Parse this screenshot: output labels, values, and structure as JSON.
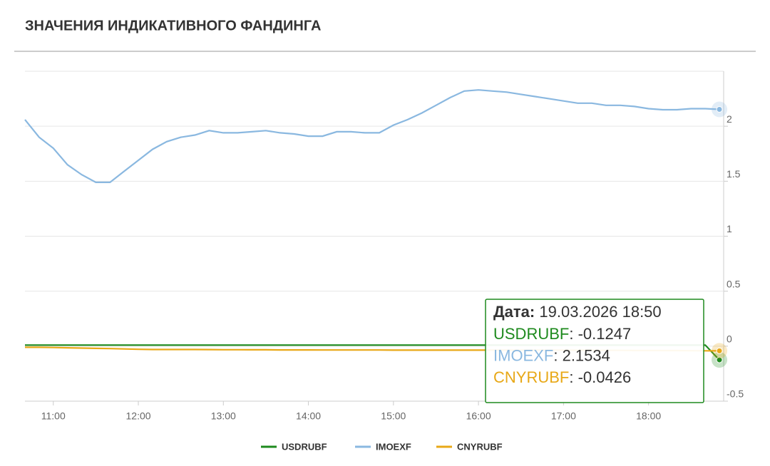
{
  "chart_data": {
    "type": "line",
    "title": "ЗНАЧЕНИЯ ИНДИКАТИВНОГО ФАНДИНГА",
    "x": [
      "10:40",
      "10:50",
      "11:00",
      "11:10",
      "11:20",
      "11:30",
      "11:40",
      "11:50",
      "12:00",
      "12:10",
      "12:20",
      "12:30",
      "12:40",
      "12:50",
      "13:00",
      "13:10",
      "13:20",
      "13:30",
      "13:40",
      "13:50",
      "14:00",
      "14:10",
      "14:20",
      "14:30",
      "14:40",
      "14:50",
      "15:00",
      "15:10",
      "15:20",
      "15:30",
      "15:40",
      "15:50",
      "16:00",
      "16:10",
      "16:20",
      "16:30",
      "16:40",
      "16:50",
      "17:00",
      "17:10",
      "17:20",
      "17:30",
      "17:40",
      "17:50",
      "18:00",
      "18:10",
      "18:20",
      "18:30",
      "18:40",
      "18:50"
    ],
    "xlim": [
      "10:40",
      "18:53"
    ],
    "xticks": [
      "11:00",
      "12:00",
      "13:00",
      "14:00",
      "15:00",
      "16:00",
      "17:00",
      "18:00"
    ],
    "ylim": [
      -0.5,
      2.5
    ],
    "yticks": [
      -0.5,
      0,
      0.5,
      1,
      1.5,
      2
    ],
    "grid": true,
    "series": [
      {
        "name": "USDRUBF",
        "color": "#1e8a1e",
        "values": [
          0.01,
          0.01,
          0.01,
          0.01,
          0.01,
          0.01,
          0.01,
          0.01,
          0.01,
          0.01,
          0.01,
          0.01,
          0.01,
          0.01,
          0.01,
          0.01,
          0.01,
          0.01,
          0.01,
          0.01,
          0.01,
          0.01,
          0.01,
          0.01,
          0.01,
          0.01,
          0.01,
          0.01,
          0.01,
          0.01,
          0.01,
          0.01,
          0.01,
          0.01,
          0.01,
          0.01,
          0.01,
          0.01,
          0.01,
          0.01,
          0.01,
          0.01,
          0.01,
          0.01,
          0.01,
          0.01,
          0.01,
          0.01,
          0.01,
          -0.1247
        ]
      },
      {
        "name": "IMOEXF",
        "color": "#8ab8e0",
        "values": [
          2.06,
          1.9,
          1.8,
          1.65,
          1.56,
          1.49,
          1.49,
          1.59,
          1.69,
          1.79,
          1.86,
          1.9,
          1.92,
          1.96,
          1.94,
          1.94,
          1.95,
          1.96,
          1.94,
          1.93,
          1.91,
          1.91,
          1.95,
          1.95,
          1.94,
          1.94,
          2.01,
          2.06,
          2.12,
          2.19,
          2.26,
          2.32,
          2.33,
          2.32,
          2.31,
          2.29,
          2.27,
          2.25,
          2.23,
          2.21,
          2.21,
          2.19,
          2.19,
          2.18,
          2.16,
          2.15,
          2.15,
          2.16,
          2.16,
          2.1534
        ]
      },
      {
        "name": "CNYRUBF",
        "color": "#e8a817",
        "values": [
          -0.01,
          -0.01,
          -0.012,
          -0.015,
          -0.017,
          -0.02,
          -0.022,
          -0.025,
          -0.028,
          -0.03,
          -0.03,
          -0.03,
          -0.03,
          -0.031,
          -0.032,
          -0.032,
          -0.033,
          -0.033,
          -0.034,
          -0.034,
          -0.034,
          -0.035,
          -0.035,
          -0.035,
          -0.035,
          -0.035,
          -0.036,
          -0.036,
          -0.036,
          -0.036,
          -0.036,
          -0.036,
          -0.036,
          -0.036,
          -0.036,
          -0.036,
          -0.036,
          -0.036,
          -0.036,
          -0.037,
          -0.037,
          -0.038,
          -0.038,
          -0.039,
          -0.039,
          -0.04,
          -0.04,
          -0.041,
          -0.042,
          -0.0426
        ]
      }
    ],
    "tooltip": {
      "label": "Дата:",
      "date": "19.03.2026 18:50",
      "separator": ": "
    }
  }
}
